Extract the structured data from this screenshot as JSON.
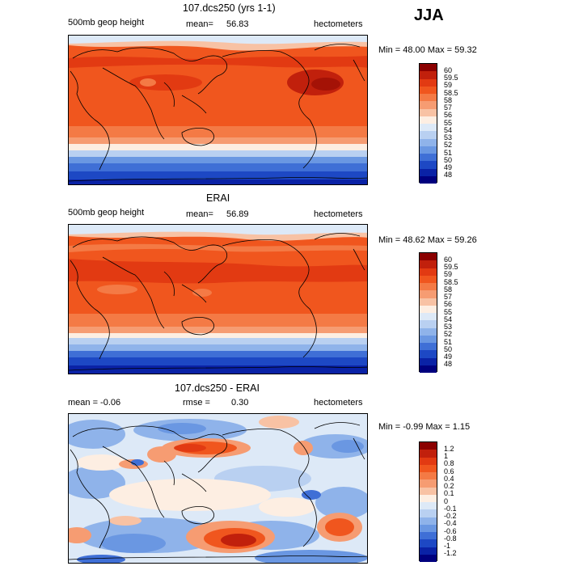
{
  "season": "JJA",
  "panels": [
    {
      "title": "107.dcs250 (yrs 1-1)",
      "left_label": "500mb geop height",
      "mean_label": "mean=",
      "mean_value": "56.83",
      "units": "hectometers",
      "minmax": "Min =  48.00 Max =   59.32",
      "colorbar_labels": [
        "60",
        "59.5",
        "59",
        "58.5",
        "58",
        "57",
        "56",
        "55",
        "54",
        "53",
        "52",
        "51",
        "50",
        "49",
        "48"
      ],
      "colorbar_colors": [
        "#8b0000",
        "#c1200c",
        "#e23a12",
        "#f0561e",
        "#f47a45",
        "#f69c72",
        "#f8c2a4",
        "#fdeee2",
        "#dde9f7",
        "#b9d0f1",
        "#8fb3ea",
        "#6a97e2",
        "#3f6fd6",
        "#1d48c4",
        "#0a22a6",
        "#00007e"
      ]
    },
    {
      "title": "ERAI",
      "left_label": "500mb geop height",
      "mean_label": "mean=",
      "mean_value": "56.89",
      "units": "hectometers",
      "minmax": "Min =  48.62 Max =   59.26",
      "colorbar_labels": [
        "60",
        "59.5",
        "59",
        "58.5",
        "58",
        "57",
        "56",
        "55",
        "54",
        "53",
        "52",
        "51",
        "50",
        "49",
        "48"
      ],
      "colorbar_colors": [
        "#8b0000",
        "#c1200c",
        "#e23a12",
        "#f0561e",
        "#f47a45",
        "#f69c72",
        "#f8c2a4",
        "#fdeee2",
        "#dde9f7",
        "#b9d0f1",
        "#8fb3ea",
        "#6a97e2",
        "#3f6fd6",
        "#1d48c4",
        "#0a22a6",
        "#00007e"
      ]
    },
    {
      "title": "107.dcs250 - ERAI",
      "left_label": "mean =   -0.06",
      "mean_label": "rmse =",
      "mean_value": "0.30",
      "units": "hectometers",
      "minmax": "Min =  -0.99 Max =    1.15",
      "colorbar_labels": [
        "1.2",
        "1",
        "0.8",
        "0.6",
        "0.4",
        "0.2",
        "0.1",
        "0",
        "-0.1",
        "-0.2",
        "-0.4",
        "-0.6",
        "-0.8",
        "-1",
        "-1.2"
      ],
      "colorbar_colors": [
        "#8b0000",
        "#c1200c",
        "#e23a12",
        "#f0561e",
        "#f47a45",
        "#f69c72",
        "#f8c2a4",
        "#fdeee2",
        "#dde9f7",
        "#b9d0f1",
        "#8fb3ea",
        "#6a97e2",
        "#3f6fd6",
        "#1d48c4",
        "#0a22a6",
        "#00007e"
      ]
    }
  ]
}
